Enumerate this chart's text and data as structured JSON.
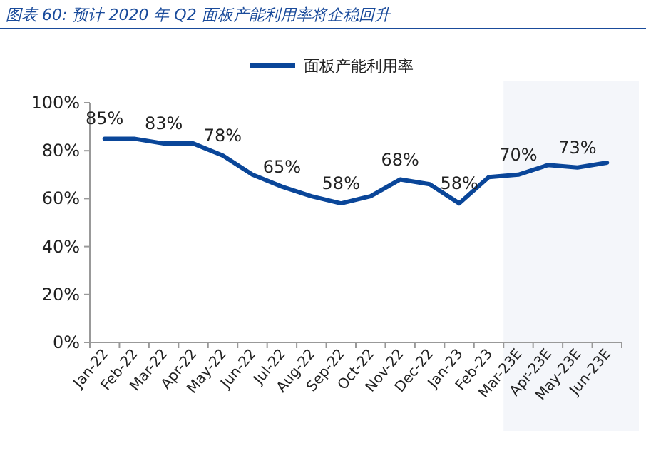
{
  "chart_data": {
    "type": "line",
    "title": "图表 60: 预计 2020 年 Q2 面板产能利用率将企稳回升",
    "categories": [
      "Jan-22",
      "Feb-22",
      "Mar-22",
      "Apr-22",
      "May-22",
      "Jun-22",
      "Jul-22",
      "Aug-22",
      "Sep-22",
      "Oct-22",
      "Nov-22",
      "Dec-22",
      "Jan-23",
      "Feb-23",
      "Mar-23E",
      "Apr-23E",
      "May-23E",
      "Jun-23E"
    ],
    "series": [
      {
        "name": "面板产能利用率",
        "color": "#0a4699",
        "values": [
          85,
          85,
          83,
          83,
          78,
          70,
          65,
          61,
          58,
          61,
          68,
          66,
          58,
          69,
          70,
          74,
          73,
          75
        ],
        "value_labels": [
          "85%",
          null,
          "83%",
          null,
          "78%",
          null,
          "65%",
          null,
          "58%",
          null,
          "68%",
          null,
          "58%",
          null,
          "70%",
          null,
          "73%",
          null
        ]
      }
    ],
    "ylim": [
      0,
      100
    ],
    "yticks": [
      {
        "value": 0,
        "label": "0%"
      },
      {
        "value": 20,
        "label": "20%"
      },
      {
        "value": 40,
        "label": "40%"
      },
      {
        "value": 60,
        "label": "60%"
      },
      {
        "value": 80,
        "label": "80%"
      },
      {
        "value": 100,
        "label": "100%"
      }
    ],
    "bands": [
      {
        "axis": "x",
        "from": "Mar-23E",
        "to": "Jun-23E",
        "color": "#f4f6fa"
      }
    ],
    "legend": "top"
  }
}
